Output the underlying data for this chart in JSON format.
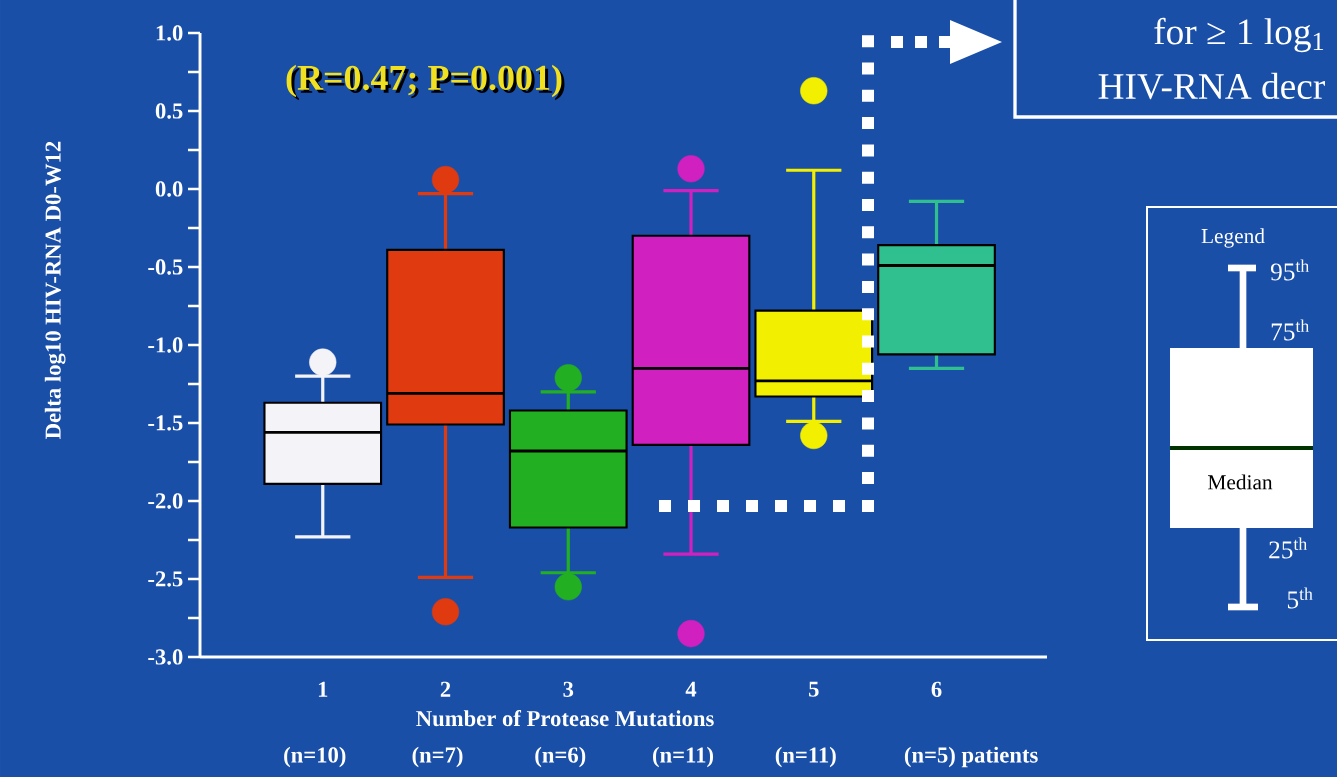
{
  "chart_data": {
    "type": "box",
    "ylabel": "Delta log10  HIV-RNA D0-W12",
    "xlabel": "Number of Protease Mutations",
    "categories": [
      "1",
      "2",
      "3",
      "4",
      "5",
      "6"
    ],
    "colors": [
      "#f4f4f8",
      "#e03a10",
      "#22b022",
      "#d020c0",
      "#f2f000",
      "#30c090"
    ],
    "boxes": [
      {
        "low": -2.23,
        "q1": -1.89,
        "median": -1.56,
        "q3": -1.37,
        "high": -1.2,
        "outliers": [
          -1.11
        ]
      },
      {
        "low": -2.49,
        "q1": -1.51,
        "median": -1.31,
        "q3": -0.39,
        "high": -0.03,
        "outliers": [
          0.06,
          -2.71
        ]
      },
      {
        "low": -2.46,
        "q1": -2.17,
        "median": -1.68,
        "q3": -1.42,
        "high": -1.3,
        "outliers": [
          -1.21,
          -2.55
        ]
      },
      {
        "low": -2.34,
        "q1": -1.64,
        "median": -1.15,
        "q3": -0.3,
        "high": -0.01,
        "outliers": [
          0.13,
          -2.85
        ]
      },
      {
        "low": -1.49,
        "q1": -1.33,
        "median": -1.23,
        "q3": -0.78,
        "high": 0.12,
        "outliers": [
          0.63,
          -1.58
        ]
      },
      {
        "low": -1.15,
        "q1": -1.06,
        "median": -0.49,
        "q3": -0.36,
        "high": -0.08
      }
    ],
    "ylim": [
      -3,
      1
    ],
    "yticks": [
      {
        "value": -3,
        "label": "-3.0"
      },
      {
        "value": -2.75,
        "label": null
      },
      {
        "value": -2.5,
        "label": "-2.5"
      },
      {
        "value": -2.25,
        "label": null
      },
      {
        "value": -2,
        "label": "-2.0"
      },
      {
        "value": -1.75,
        "label": null
      },
      {
        "value": -1.5,
        "label": "-1.5"
      },
      {
        "value": -1.25,
        "label": null
      },
      {
        "value": -1,
        "label": "-1.0"
      },
      {
        "value": -0.75,
        "label": null
      },
      {
        "value": -0.5,
        "label": "-0.5"
      },
      {
        "value": -0.25,
        "label": null
      },
      {
        "value": 0,
        "label": "0.0"
      },
      {
        "value": 0.25,
        "label": null
      },
      {
        "value": 0.5,
        "label": "0.5"
      },
      {
        "value": 0.75,
        "label": null
      },
      {
        "value": 1,
        "label": "1.0"
      }
    ],
    "marker": "circle",
    "annotations": [
      "(R=0.47; P=0.001)",
      "(n=10)",
      "(n=7)",
      "(n=6)",
      "(n=11)",
      "(n=11)",
      "(n=5) patients",
      "for ≥ 1 log$_{1}$",
      "HIV-RNA decr",
      "Legend",
      "95$^{th}$",
      "75$^{th}$",
      "Median",
      "25$^{th}$",
      "5$^{th}$"
    ]
  }
}
